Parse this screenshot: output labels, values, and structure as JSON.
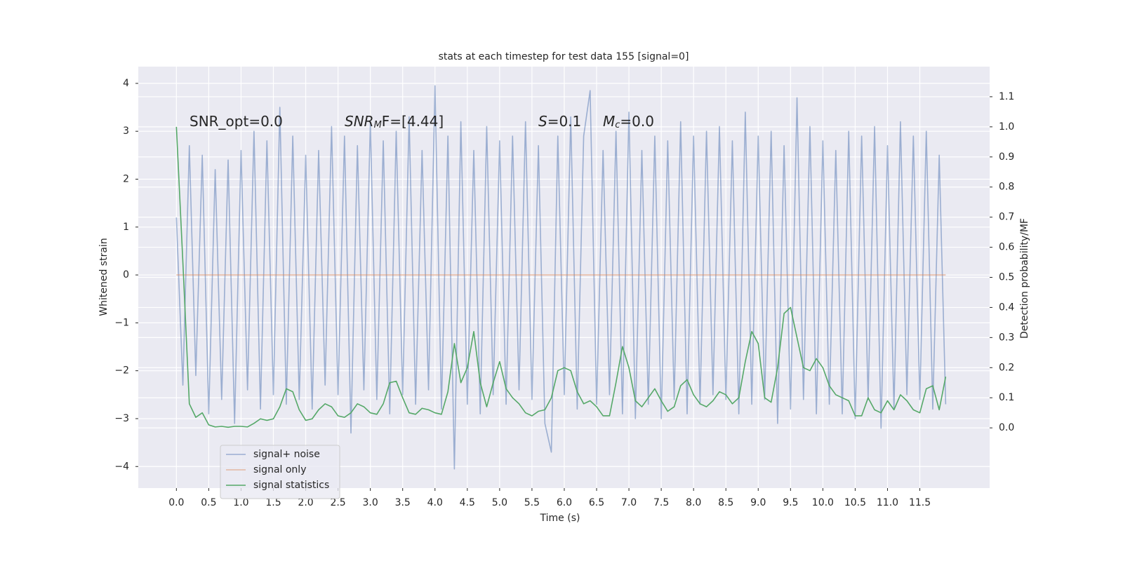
{
  "chart_data": {
    "type": "line",
    "title": "stats at each timestep for test data 155 [signal=0]",
    "xlabel": "Time (s)",
    "ylabel": "Whitened strain",
    "y2label": "Detection probability/MF",
    "annotations": [
      [
        "SNR_opt=0.0"
      ],
      [
        "SNR",
        "M",
        "F=[4.44]"
      ],
      [
        "S",
        "=0.1"
      ],
      [
        "M",
        "c",
        "=0.0"
      ]
    ],
    "grid": true,
    "legend": "lower left",
    "background": "#eaeaf2",
    "xlim": [
      -0.59,
      12.58
    ],
    "ylim": [
      -4.45,
      4.35
    ],
    "y2lim": [
      -0.2,
      1.2
    ],
    "xticks": [
      {
        "value": 0,
        "label": "0.0"
      },
      0.5,
      {
        "value": 1,
        "label": "1.0"
      },
      1.5,
      {
        "value": 2,
        "label": "2.0"
      },
      2.5,
      {
        "value": 3,
        "label": "3.0"
      },
      3.5,
      {
        "value": 4,
        "label": "4.0"
      },
      4.5,
      {
        "value": 5,
        "label": "5.0"
      },
      5.5,
      {
        "value": 6,
        "label": "6.0"
      },
      6.5,
      {
        "value": 7,
        "label": "7.0"
      },
      7.5,
      {
        "value": 8,
        "label": "8.0"
      },
      8.5,
      {
        "value": 9,
        "label": "9.0"
      },
      9.5,
      {
        "value": 10,
        "label": "10.0"
      },
      10.5,
      {
        "value": 11,
        "label": "11.0"
      },
      11.5
    ],
    "yticks": [
      {
        "value": -4,
        "label": "−4"
      },
      {
        "value": -3,
        "label": "−3"
      },
      {
        "value": -2,
        "label": "−2"
      },
      {
        "value": -1,
        "label": "−1"
      },
      0,
      1,
      2,
      3,
      4
    ],
    "y2ticks": [
      {
        "value": 0,
        "label": "0.0"
      },
      0.1,
      0.2,
      0.3,
      0.4,
      0.5,
      0.6,
      0.7,
      0.8,
      0.9,
      {
        "value": 1,
        "label": "1.0"
      },
      1.1
    ],
    "x": [
      0.0,
      0.1,
      0.2,
      0.3,
      0.4,
      0.5,
      0.6,
      0.7,
      0.8,
      0.9,
      1.0,
      1.1,
      1.2,
      1.3,
      1.4,
      1.5,
      1.6,
      1.7,
      1.8,
      1.9,
      2.0,
      2.1,
      2.2,
      2.3,
      2.4,
      2.5,
      2.6,
      2.7,
      2.8,
      2.9,
      3.0,
      3.1,
      3.2,
      3.3,
      3.4,
      3.5,
      3.6,
      3.7,
      3.8,
      3.9,
      4.0,
      4.1,
      4.2,
      4.3,
      4.4,
      4.5,
      4.6,
      4.7,
      4.8,
      4.9,
      5.0,
      5.1,
      5.2,
      5.3,
      5.4,
      5.5,
      5.6,
      5.7,
      5.8,
      5.9,
      6.0,
      6.1,
      6.2,
      6.3,
      6.4,
      6.5,
      6.6,
      6.7,
      6.8,
      6.9,
      7.0,
      7.1,
      7.2,
      7.3,
      7.4,
      7.5,
      7.6,
      7.7,
      7.8,
      7.9,
      8.0,
      8.1,
      8.2,
      8.3,
      8.4,
      8.5,
      8.6,
      8.7,
      8.8,
      8.9,
      9.0,
      9.1,
      9.2,
      9.3,
      9.4,
      9.5,
      9.6,
      9.7,
      9.8,
      9.9,
      10.0,
      10.1,
      10.2,
      10.3,
      10.4,
      10.5,
      10.6,
      10.7,
      10.8,
      10.9,
      11.0,
      11.1,
      11.2,
      11.3,
      11.4,
      11.5,
      11.6,
      11.7,
      11.8,
      11.9
    ],
    "series": [
      {
        "name": "signal+ noise",
        "color": "#4c72b0",
        "alpha": 0.5,
        "values": [
          1.2,
          -2.3,
          2.7,
          -2.1,
          2.5,
          -2.9,
          2.2,
          -2.6,
          2.4,
          -3.1,
          2.6,
          -2.4,
          3.0,
          -2.8,
          2.8,
          -2.5,
          3.5,
          -2.7,
          2.9,
          -2.6,
          2.5,
          -2.8,
          2.6,
          -2.3,
          3.1,
          -2.5,
          2.9,
          -3.3,
          2.7,
          -2.4,
          3.2,
          -2.6,
          2.8,
          -2.9,
          3.0,
          -2.5,
          3.3,
          -2.7,
          2.6,
          -2.4,
          3.95,
          -2.8,
          2.9,
          -4.05,
          3.2,
          -2.7,
          2.6,
          -2.9,
          3.1,
          -2.5,
          2.8,
          -2.7,
          2.9,
          -2.4,
          3.2,
          -2.6,
          2.7,
          -3.1,
          -3.7,
          2.9,
          -2.5,
          3.3,
          -2.8,
          2.9,
          3.85,
          -2.7,
          2.6,
          -2.5,
          3.0,
          -2.9,
          3.4,
          -3.0,
          2.6,
          -2.7,
          2.9,
          -3.0,
          2.8,
          -2.6,
          3.2,
          -2.9,
          2.9,
          -2.7,
          3.0,
          -2.5,
          3.1,
          -2.6,
          2.8,
          -2.9,
          3.4,
          -2.7,
          2.9,
          -2.6,
          3.0,
          -3.1,
          2.7,
          -2.8,
          3.7,
          -2.6,
          3.1,
          -2.9,
          2.8,
          -2.7,
          2.6,
          -2.9,
          3.0,
          -3.0,
          2.9,
          -2.6,
          3.1,
          -3.2,
          2.7,
          -2.8,
          3.2,
          -2.5,
          2.9,
          -2.6,
          3.0,
          -2.8,
          2.5,
          -2.7
        ]
      },
      {
        "name": "signal only",
        "color": "#dd8452",
        "alpha": 0.5,
        "values": [
          0,
          0,
          0,
          0,
          0,
          0,
          0,
          0,
          0,
          0,
          0,
          0,
          0,
          0,
          0,
          0,
          0,
          0,
          0,
          0,
          0,
          0,
          0,
          0,
          0,
          0,
          0,
          0,
          0,
          0,
          0,
          0,
          0,
          0,
          0,
          0,
          0,
          0,
          0,
          0,
          0,
          0,
          0,
          0,
          0,
          0,
          0,
          0,
          0,
          0,
          0,
          0,
          0,
          0,
          0,
          0,
          0,
          0,
          0,
          0,
          0,
          0,
          0,
          0,
          0,
          0,
          0,
          0,
          0,
          0,
          0,
          0,
          0,
          0,
          0,
          0,
          0,
          0,
          0,
          0,
          0,
          0,
          0,
          0,
          0,
          0,
          0,
          0,
          0,
          0,
          0,
          0,
          0,
          0,
          0,
          0,
          0,
          0,
          0,
          0,
          0,
          0,
          0,
          0,
          0,
          0,
          0,
          0,
          0,
          0,
          0,
          0,
          0,
          0,
          0,
          0,
          0,
          0,
          0,
          0
        ]
      },
      {
        "name": "signal statistics",
        "color": "#55a868",
        "alpha": 1,
        "axis": "y2",
        "values": [
          1.0,
          0.55,
          0.08,
          0.035,
          0.05,
          0.01,
          0.003,
          0.005,
          0.002,
          0.005,
          0.005,
          0.003,
          0.015,
          0.03,
          0.025,
          0.03,
          0.07,
          0.13,
          0.12,
          0.06,
          0.025,
          0.03,
          0.06,
          0.08,
          0.07,
          0.04,
          0.035,
          0.05,
          0.08,
          0.07,
          0.05,
          0.045,
          0.08,
          0.15,
          0.155,
          0.1,
          0.05,
          0.045,
          0.065,
          0.06,
          0.05,
          0.045,
          0.12,
          0.28,
          0.15,
          0.2,
          0.32,
          0.15,
          0.07,
          0.15,
          0.22,
          0.13,
          0.1,
          0.08,
          0.05,
          0.04,
          0.055,
          0.06,
          0.1,
          0.19,
          0.2,
          0.19,
          0.12,
          0.08,
          0.09,
          0.07,
          0.04,
          0.04,
          0.15,
          0.27,
          0.2,
          0.09,
          0.07,
          0.1,
          0.13,
          0.09,
          0.055,
          0.07,
          0.14,
          0.16,
          0.11,
          0.08,
          0.07,
          0.09,
          0.12,
          0.11,
          0.08,
          0.1,
          0.22,
          0.32,
          0.28,
          0.1,
          0.085,
          0.2,
          0.38,
          0.4,
          0.3,
          0.2,
          0.19,
          0.23,
          0.2,
          0.14,
          0.11,
          0.1,
          0.09,
          0.04,
          0.04,
          0.1,
          0.06,
          0.05,
          0.09,
          0.06,
          0.11,
          0.09,
          0.06,
          0.05,
          0.13,
          0.14,
          0.06,
          0.17
        ]
      }
    ]
  }
}
